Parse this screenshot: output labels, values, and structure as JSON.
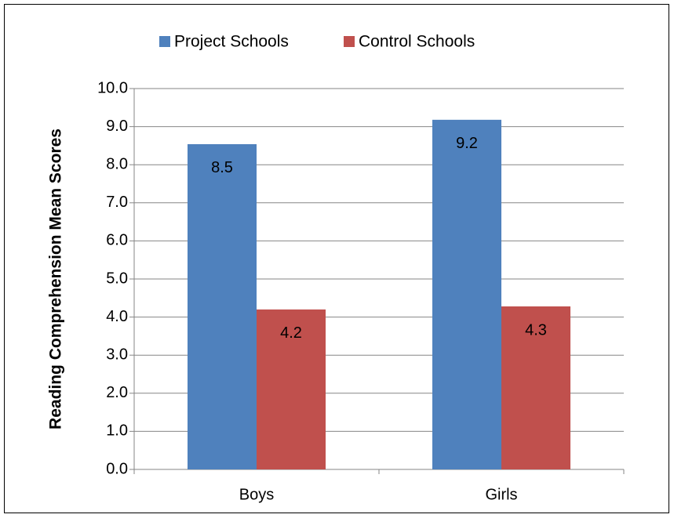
{
  "chart_data": {
    "type": "bar",
    "y_label": "Reading Comprehension Mean Scores",
    "categories": [
      "Boys",
      "Girls"
    ],
    "series": [
      {
        "name": "Project Schools",
        "color": "#4f81bd",
        "values": [
          8.54,
          9.18
        ],
        "value_labels": [
          "8.5",
          "9.2"
        ]
      },
      {
        "name": "Control Schools",
        "color": "#c0504d",
        "values": [
          4.2,
          4.28
        ],
        "value_labels": [
          "4.2",
          "4.3"
        ]
      }
    ],
    "ylim": [
      0,
      10
    ],
    "yticks": [
      {
        "value": 0,
        "label": "0.0"
      },
      {
        "value": 1,
        "label": "1.0"
      },
      {
        "value": 2,
        "label": "2.0"
      },
      {
        "value": 3,
        "label": "3.0"
      },
      {
        "value": 4,
        "label": "4.0"
      },
      {
        "value": 5,
        "label": "5.0"
      },
      {
        "value": 6,
        "label": "6.0"
      },
      {
        "value": 7,
        "label": "7.0"
      },
      {
        "value": 8,
        "label": "8.0"
      },
      {
        "value": 9,
        "label": "9.0"
      },
      {
        "value": 10,
        "label": "10.0"
      }
    ],
    "grid": true,
    "legend": "top"
  }
}
